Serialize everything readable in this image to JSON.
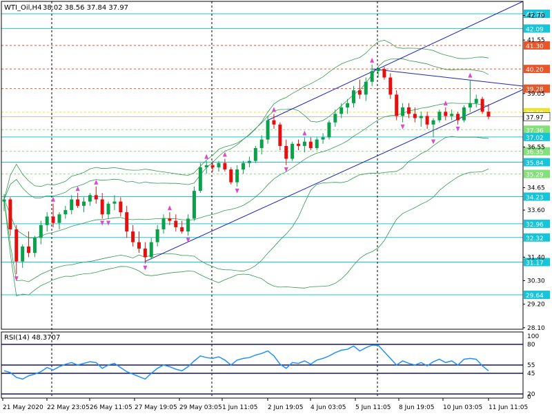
{
  "chart_data": {
    "type": "candlestick",
    "symbol_timeframe": "WTI_Oil,H4",
    "ohlc_label": "38.02 38.56 37.84 37.97",
    "ohlc": [
      [
        34.0,
        34.35,
        33.55,
        34.1
      ],
      [
        34.1,
        34.2,
        32.4,
        32.7
      ],
      [
        32.7,
        32.9,
        30.6,
        31.2
      ],
      [
        31.2,
        32.0,
        30.9,
        31.9
      ],
      [
        31.9,
        32.6,
        31.4,
        31.6
      ],
      [
        31.6,
        32.4,
        31.4,
        32.3
      ],
      [
        32.3,
        33.1,
        32.0,
        32.9
      ],
      [
        32.9,
        33.5,
        32.6,
        33.3
      ],
      [
        33.3,
        33.9,
        32.8,
        33.0
      ],
      [
        33.0,
        33.5,
        32.7,
        33.4
      ],
      [
        33.4,
        33.8,
        33.2,
        33.6
      ],
      [
        33.6,
        34.3,
        33.4,
        34.1
      ],
      [
        34.1,
        34.4,
        33.7,
        33.8
      ],
      [
        33.8,
        34.2,
        33.5,
        34.0
      ],
      [
        34.0,
        34.4,
        33.8,
        34.3
      ],
      [
        34.3,
        34.7,
        33.9,
        34.1
      ],
      [
        34.1,
        34.4,
        33.2,
        33.4
      ],
      [
        33.4,
        34.0,
        33.2,
        33.9
      ],
      [
        33.9,
        34.3,
        33.6,
        34.0
      ],
      [
        34.0,
        34.2,
        33.3,
        33.5
      ],
      [
        33.5,
        33.8,
        32.3,
        32.6
      ],
      [
        32.6,
        32.9,
        31.9,
        32.1
      ],
      [
        32.1,
        32.6,
        31.6,
        31.8
      ],
      [
        31.8,
        32.1,
        31.1,
        31.4
      ],
      [
        31.4,
        32.3,
        31.3,
        32.1
      ],
      [
        32.1,
        32.9,
        31.9,
        32.7
      ],
      [
        32.7,
        33.4,
        32.5,
        33.2
      ],
      [
        33.2,
        33.5,
        32.9,
        33.1
      ],
      [
        33.1,
        33.4,
        32.6,
        32.8
      ],
      [
        32.8,
        33.1,
        32.5,
        32.6
      ],
      [
        32.6,
        33.4,
        32.4,
        33.2
      ],
      [
        33.2,
        34.7,
        33.1,
        34.5
      ],
      [
        34.5,
        35.8,
        34.4,
        35.6
      ],
      [
        35.6,
        35.9,
        35.3,
        35.7
      ],
      [
        35.7,
        35.9,
        35.4,
        35.6
      ],
      [
        35.6,
        35.9,
        35.4,
        35.8
      ],
      [
        35.8,
        36.0,
        35.4,
        35.5
      ],
      [
        35.5,
        35.6,
        34.8,
        34.9
      ],
      [
        34.9,
        35.7,
        34.7,
        35.5
      ],
      [
        35.5,
        35.9,
        35.3,
        35.8
      ],
      [
        35.8,
        36.1,
        35.6,
        35.9
      ],
      [
        35.9,
        36.6,
        35.8,
        36.5
      ],
      [
        36.5,
        37.1,
        36.2,
        36.9
      ],
      [
        36.9,
        38.0,
        36.7,
        37.8
      ],
      [
        37.8,
        38.1,
        37.4,
        37.6
      ],
      [
        37.6,
        37.7,
        36.4,
        36.6
      ],
      [
        36.6,
        36.9,
        35.7,
        36.0
      ],
      [
        36.0,
        36.8,
        35.9,
        36.7
      ],
      [
        36.7,
        36.9,
        36.4,
        36.6
      ],
      [
        36.6,
        37.0,
        36.3,
        36.8
      ],
      [
        36.8,
        37.0,
        36.4,
        36.5
      ],
      [
        36.5,
        37.0,
        36.4,
        36.9
      ],
      [
        36.9,
        37.2,
        36.7,
        37.0
      ],
      [
        37.0,
        37.8,
        36.9,
        37.7
      ],
      [
        37.7,
        38.3,
        37.5,
        38.1
      ],
      [
        38.1,
        38.6,
        37.9,
        38.4
      ],
      [
        38.4,
        38.8,
        38.1,
        38.6
      ],
      [
        38.6,
        39.4,
        38.4,
        39.2
      ],
      [
        39.2,
        39.7,
        38.8,
        39.0
      ],
      [
        39.0,
        39.8,
        38.7,
        39.6
      ],
      [
        39.6,
        40.4,
        39.4,
        40.1
      ],
      [
        40.1,
        40.3,
        39.8,
        40.2
      ],
      [
        40.2,
        40.3,
        39.7,
        39.8
      ],
      [
        39.8,
        40.0,
        38.8,
        39.0
      ],
      [
        39.0,
        39.2,
        37.8,
        38.0
      ],
      [
        38.0,
        38.6,
        37.7,
        38.4
      ],
      [
        38.4,
        38.6,
        37.9,
        38.1
      ],
      [
        38.1,
        38.4,
        37.7,
        37.9
      ],
      [
        37.9,
        38.2,
        37.5,
        38.0
      ],
      [
        38.0,
        38.2,
        37.4,
        37.6
      ],
      [
        37.6,
        37.9,
        37.0,
        37.8
      ],
      [
        37.8,
        38.3,
        37.7,
        38.2
      ],
      [
        38.2,
        38.4,
        37.8,
        38.0
      ],
      [
        38.0,
        38.3,
        37.8,
        38.1
      ],
      [
        38.1,
        38.2,
        37.6,
        37.8
      ],
      [
        37.8,
        38.5,
        37.7,
        38.4
      ],
      [
        38.4,
        39.7,
        38.2,
        38.6
      ],
      [
        38.6,
        39.0,
        38.4,
        38.8
      ],
      [
        38.8,
        38.9,
        38.1,
        38.2
      ],
      [
        38.2,
        38.56,
        37.84,
        37.97
      ]
    ],
    "y_axis_labels": [
      "42.70",
      "41.55",
      "39.05",
      "36.55",
      "34.65",
      "33.60",
      "31.40",
      "30.30",
      "29.20",
      "28.10"
    ],
    "horizontal_levels": [
      {
        "value": 42.78,
        "label": "42.78",
        "style": "solid",
        "color": "#16c5d9"
      },
      {
        "value": 42.09,
        "label": "42.09",
        "style": "solid",
        "color": "#16c5d9"
      },
      {
        "value": 41.3,
        "label": "41.30",
        "style": "dashed",
        "color": "#e8562a"
      },
      {
        "value": 40.2,
        "label": "40.20",
        "style": "dashed",
        "color": "#e8562a"
      },
      {
        "value": 39.28,
        "label": "39.28",
        "style": "dashed",
        "color": "#e8562a"
      },
      {
        "value": 38.18,
        "label": "38.18",
        "style": "dashed",
        "color": "#eee52a"
      },
      {
        "value": 37.97,
        "label": "37.97",
        "style": "current",
        "color": "#c8c8c8"
      },
      {
        "value": 37.36,
        "label": "37.36",
        "style": "dashed",
        "color": "#84e07a"
      },
      {
        "value": 37.02,
        "label": "37.02",
        "style": "solid",
        "color": "#16c5d9"
      },
      {
        "value": 36.35,
        "label": "36.35",
        "style": "dashed",
        "color": "#84e07a"
      },
      {
        "value": 35.84,
        "label": "35.84",
        "style": "solid",
        "color": "#16c5d9"
      },
      {
        "value": 35.29,
        "label": "35.29",
        "style": "dashed",
        "color": "#84e07a"
      },
      {
        "value": 34.23,
        "label": "34.23",
        "style": "solid",
        "color": "#16c5d9"
      },
      {
        "value": 32.96,
        "label": "32.96",
        "style": "solid",
        "color": "#16c5d9"
      },
      {
        "value": 32.32,
        "label": "32.32",
        "style": "solid",
        "color": "#16c5d9"
      },
      {
        "value": 31.17,
        "label": "31.17",
        "style": "solid",
        "color": "#16c5d9"
      },
      {
        "value": 29.64,
        "label": "29.64",
        "style": "solid",
        "color": "#16c5d9"
      }
    ],
    "x_axis_labels": [
      "21 May 2020",
      "22 May 23:05",
      "26 May 11:05",
      "27 May 19:05",
      "29 May 03:05",
      "1 Jun 11:05",
      "2 Jun 19:05",
      "4 Jun 03:05",
      "5 Jun 11:05",
      "8 Jun 19:05",
      "10 Jun 03:05",
      "11 Jun 11:05"
    ],
    "rsi": {
      "label": "RSI(14) 48.3707",
      "axis_labels": [
        "100",
        "80",
        "55",
        "45",
        "20",
        "0"
      ],
      "levels": [
        80,
        55,
        45,
        20
      ],
      "values": [
        48,
        46,
        40,
        38,
        42,
        44,
        47,
        52,
        49,
        53,
        56,
        58,
        55,
        57,
        59,
        58,
        51,
        55,
        57,
        52,
        47,
        44,
        41,
        38,
        45,
        51,
        55,
        53,
        50,
        48,
        53,
        60,
        66,
        64,
        63,
        65,
        61,
        55,
        61,
        63,
        64,
        67,
        69,
        72,
        66,
        56,
        51,
        58,
        57,
        60,
        56,
        61,
        63,
        66,
        70,
        73,
        74,
        78,
        72,
        76,
        79,
        79,
        71,
        63,
        55,
        60,
        57,
        55,
        58,
        54,
        59,
        62,
        58,
        60,
        55,
        62,
        63,
        62,
        54,
        48
      ]
    },
    "colors": {
      "bull": "#0aa14a",
      "bear": "#e41010",
      "bollinger": "#2f9a4a",
      "channel": "#1a24b8",
      "fractal": "#d94bd0",
      "rsi_line": "#1e90ff",
      "rsi_levels": "#141476"
    },
    "grid": true
  }
}
